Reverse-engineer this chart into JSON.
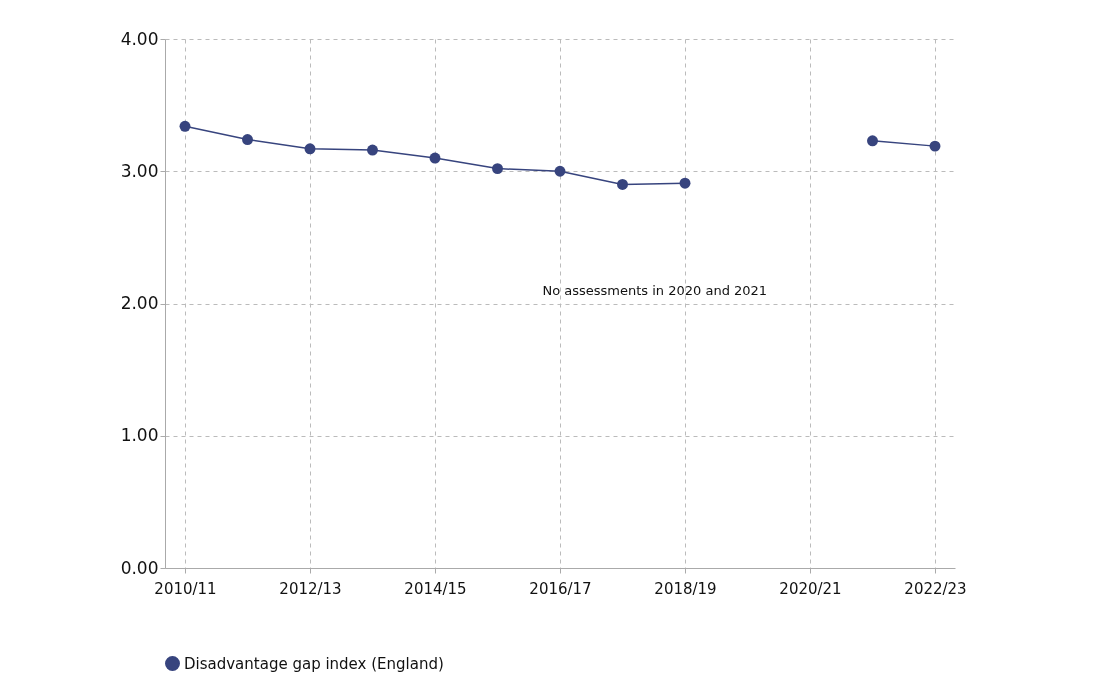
{
  "chart_data": {
    "type": "line",
    "categories": [
      "2010/11",
      null,
      "2012/13",
      null,
      "2014/15",
      null,
      "2016/17",
      null,
      "2018/19",
      null,
      "2020/21",
      null,
      "2022/23"
    ],
    "series": [
      {
        "name": "Disadvantage gap index (England)",
        "color": "#37447e",
        "values": [
          3.34,
          3.24,
          3.17,
          3.16,
          3.1,
          3.02,
          3.0,
          2.9,
          2.91,
          null,
          null,
          3.23,
          3.19
        ]
      }
    ],
    "ylim": [
      0,
      4
    ],
    "yticks": [
      {
        "value": 0,
        "label": "0.00"
      },
      {
        "value": 1,
        "label": "1.00"
      },
      {
        "value": 2,
        "label": "2.00"
      },
      {
        "value": 3,
        "label": "3.00"
      },
      {
        "value": 4,
        "label": "4.00"
      }
    ],
    "annotations": [
      "No assessments in 2020 and 2021"
    ],
    "grid": true,
    "legend": "bottom",
    "marker": "circle",
    "line_style": "solid"
  }
}
